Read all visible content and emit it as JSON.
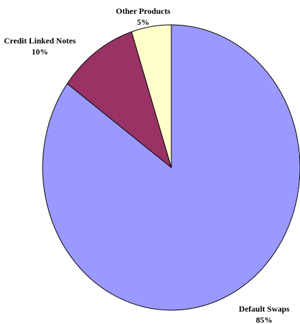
{
  "chart_data": {
    "type": "pie",
    "categories": [
      "Default Swaps",
      "Credit Linked Notes",
      "Other Products"
    ],
    "values": [
      85,
      10,
      5
    ],
    "value_labels": [
      "85%",
      "10%",
      "5%"
    ],
    "colors": [
      "#9999ff",
      "#993366",
      "#ffffcc"
    ]
  }
}
